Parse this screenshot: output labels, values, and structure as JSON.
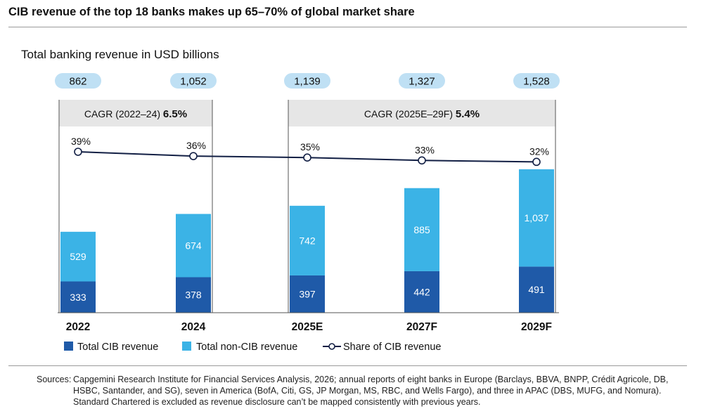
{
  "title": "CIB revenue of the top 18 banks makes up 65–70% of global market share",
  "subtitle": "Total banking revenue in USD billions",
  "colors": {
    "cib": "#1f5aa8",
    "noncib": "#3bb3e6",
    "pill": "#bfe0f4",
    "line": "#121f44",
    "bracket": "#e6e6e6"
  },
  "chart_data": {
    "type": "bar",
    "stacked": true,
    "categories": [
      "2022",
      "2024",
      "2025E",
      "2027F",
      "2029F"
    ],
    "series": [
      {
        "name": "Total CIB revenue",
        "values": [
          333,
          378,
          397,
          442,
          491
        ],
        "labels": [
          "333",
          "378",
          "397",
          "442",
          "491"
        ]
      },
      {
        "name": "Total non-CIB revenue",
        "values": [
          529,
          674,
          742,
          885,
          1037
        ],
        "labels": [
          "529",
          "674",
          "742",
          "885",
          "1,037"
        ]
      }
    ],
    "totals": [
      "862",
      "1,052",
      "1,139",
      "1,327",
      "1,528"
    ],
    "line_series": {
      "name": "Share of CIB revenue",
      "values": [
        39,
        36,
        35,
        33,
        32
      ],
      "labels": [
        "39%",
        "36%",
        "35%",
        "33%",
        "32%"
      ]
    },
    "cagr": [
      {
        "label": "CAGR (2022–24) ",
        "value": "6.5%",
        "from": 0,
        "to": 1
      },
      {
        "label": "CAGR (2025E–29F) ",
        "value": "5.4%",
        "from": 2,
        "to": 4
      }
    ],
    "legend": [
      "Total CIB revenue",
      "Total non-CIB revenue",
      "Share of CIB revenue"
    ],
    "ylabel": "Total banking revenue in USD billions",
    "ylim": [
      0,
      1550
    ]
  },
  "sources": {
    "label": "Sources:",
    "text": "Capgemini Research Institute for Financial Services Analysis, 2026; annual reports of eight banks in Europe (Barclays, BBVA, BNPP, Crédit Agricole, DB, HSBC, Santander, and SG), seven in America (BofA, Citi, GS, JP Morgan, MS, RBC, and Wells Fargo), and three in APAC (DBS, MUFG, and Nomura). Standard Chartered is excluded as revenue disclosure can’t be mapped consistently with previous years."
  }
}
